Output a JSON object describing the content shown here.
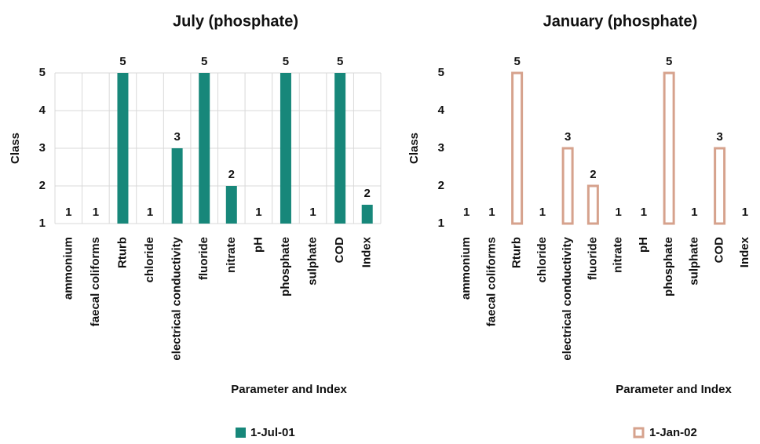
{
  "chart_data": [
    {
      "type": "bar",
      "title": "July (phosphate)",
      "x_label": "Parameter and Index",
      "y_label": "Class",
      "categories": [
        "ammonium",
        "faecal coliforms",
        "Rturb",
        "chloride",
        "electrical conductivity",
        "fluoride",
        "nitrate",
        "pH",
        "phosphate",
        "sulphate",
        "COD",
        "Index"
      ],
      "series": [
        {
          "name": "1-Jul-01",
          "color": "#17877a",
          "fill": "solid",
          "values": [
            1,
            1,
            5,
            1,
            3,
            5,
            2,
            1,
            5,
            1,
            5,
            1.5
          ],
          "value_labels": [
            "1",
            "1",
            "5",
            "1",
            "3",
            "5",
            "2",
            "1",
            "5",
            "1",
            "5",
            "2"
          ]
        }
      ],
      "ylim": [
        1,
        5
      ],
      "yticks": [
        1,
        2,
        3,
        4,
        5
      ],
      "grid": true,
      "legend": "bottom"
    },
    {
      "type": "bar",
      "title": "January (phosphate)",
      "x_label": "Parameter and Index",
      "y_label": "Class",
      "categories": [
        "ammonium",
        "faecal coliforms",
        "Rturb",
        "chloride",
        "electrical conductivity",
        "fluoride",
        "nitrate",
        "pH",
        "phosphate",
        "sulphate",
        "COD",
        "Index"
      ],
      "series": [
        {
          "name": "1-Jan-02",
          "color": "#d6a28d",
          "fill": "outline",
          "values": [
            1,
            1,
            5,
            1,
            3,
            2,
            1,
            1,
            5,
            1,
            3,
            1
          ]
        }
      ],
      "ylim": [
        1,
        5
      ],
      "yticks": [
        1,
        2,
        3,
        4,
        5
      ],
      "grid": false,
      "legend": "bottom"
    }
  ]
}
